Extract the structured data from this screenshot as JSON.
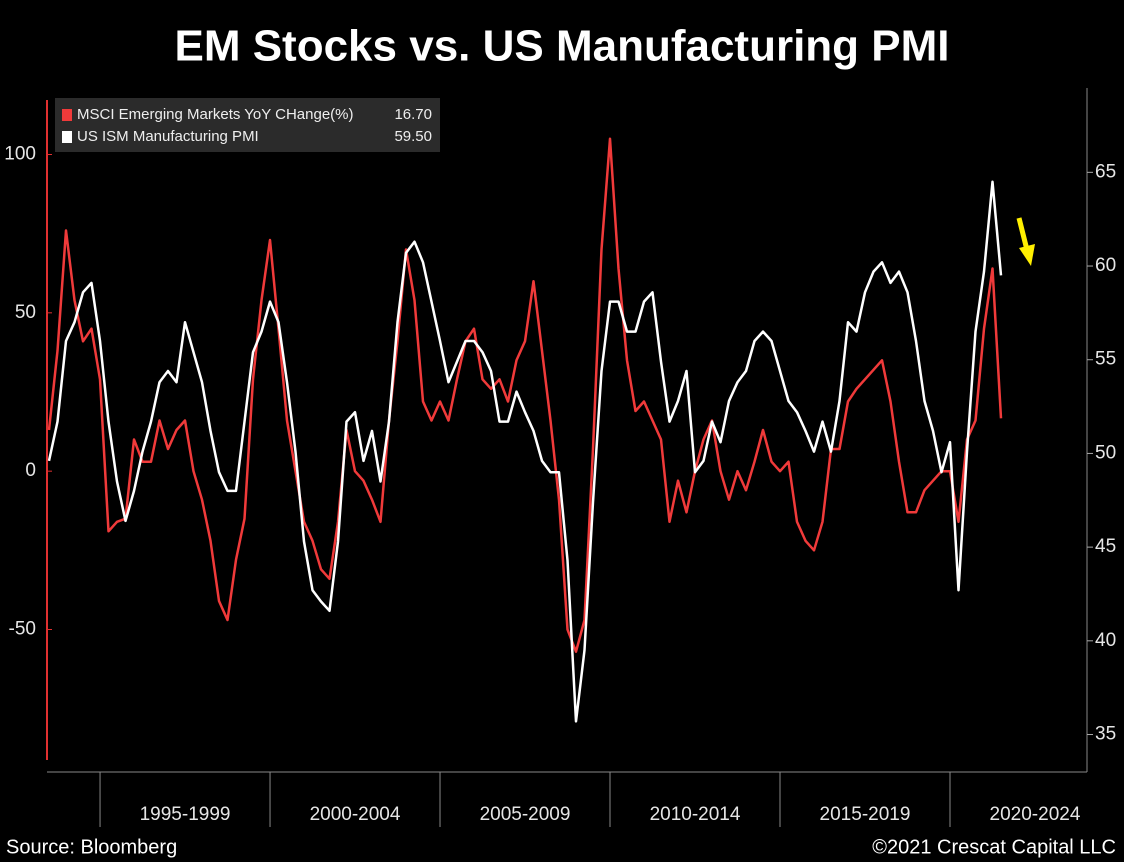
{
  "chart_data": {
    "type": "line",
    "title": "EM Stocks vs. US Manufacturing PMI",
    "source": "Source: Bloomberg",
    "copyright": "©2021 Crescat Capital LLC",
    "x": [
      1993.5,
      1993.75,
      1994,
      1994.25,
      1994.5,
      1994.75,
      1995,
      1995.25,
      1995.5,
      1995.75,
      1996,
      1996.25,
      1996.5,
      1996.75,
      1997,
      1997.25,
      1997.5,
      1997.75,
      1998,
      1998.25,
      1998.5,
      1998.75,
      1999,
      1999.25,
      1999.5,
      1999.75,
      2000,
      2000.25,
      2000.5,
      2000.75,
      2001,
      2001.25,
      2001.5,
      2001.75,
      2002,
      2002.25,
      2002.5,
      2002.75,
      2003,
      2003.25,
      2003.5,
      2003.75,
      2004,
      2004.25,
      2004.5,
      2004.75,
      2005,
      2005.25,
      2005.5,
      2005.75,
      2006,
      2006.25,
      2006.5,
      2006.75,
      2007,
      2007.25,
      2007.5,
      2007.75,
      2008,
      2008.25,
      2008.5,
      2008.75,
      2009,
      2009.25,
      2009.5,
      2009.75,
      2010,
      2010.25,
      2010.5,
      2010.75,
      2011,
      2011.25,
      2011.5,
      2011.75,
      2012,
      2012.25,
      2012.5,
      2012.75,
      2013,
      2013.25,
      2013.5,
      2013.75,
      2014,
      2014.25,
      2014.5,
      2014.75,
      2015,
      2015.25,
      2015.5,
      2015.75,
      2016,
      2016.25,
      2016.5,
      2016.75,
      2017,
      2017.25,
      2017.5,
      2017.75,
      2018,
      2018.25,
      2018.5,
      2018.75,
      2019,
      2019.25,
      2019.5,
      2019.75,
      2020,
      2020.25,
      2020.5,
      2020.75,
      2021,
      2021.25,
      2021.5
    ],
    "xlim": [
      1993.44,
      2024.03
    ],
    "xticks": [
      1995,
      2000,
      2005,
      2010,
      2015,
      2020
    ],
    "x_period_labels": [
      "1995-1999",
      "2000-2004",
      "2005-2009",
      "2010-2014",
      "2015-2019",
      "2020-2024"
    ],
    "ylim": [
      -95,
      121
    ],
    "yticks": [
      -50,
      0,
      50,
      100
    ],
    "y2lim": [
      33,
      69.5
    ],
    "y2ticks": [
      35,
      40,
      45,
      50,
      55,
      60,
      65
    ],
    "series": [
      {
        "name": "MSCI Emerging Markets YoY CHange(%)",
        "last_label": "16.70",
        "color": "#f03a3a",
        "axis": "y",
        "values": [
          13,
          38,
          76,
          54,
          41,
          45,
          29,
          -19,
          -16,
          -15,
          10,
          3,
          3,
          16,
          7,
          13,
          16,
          0,
          -9,
          -22,
          -41,
          -47,
          -28,
          -15,
          29,
          54,
          73,
          45,
          16,
          0,
          -16,
          -22,
          -31,
          -34,
          -16,
          13,
          0,
          -3,
          -9,
          -16,
          16,
          41,
          70,
          54,
          22,
          16,
          22,
          16,
          29,
          41,
          45,
          29,
          26,
          29,
          22,
          35,
          41,
          60,
          38,
          16,
          -9,
          -50,
          -57,
          -47,
          7,
          70,
          105,
          64,
          35,
          19,
          22,
          16,
          10,
          -16,
          -3,
          -13,
          0,
          10,
          16,
          0,
          -9,
          0,
          -6,
          3,
          13,
          3,
          0,
          3,
          -16,
          -22,
          -25,
          -16,
          7,
          7,
          22,
          26,
          29,
          32,
          35,
          22,
          3,
          -13,
          -13,
          -6,
          -3,
          0,
          0,
          -16,
          10,
          16,
          45,
          64,
          16.7
        ]
      },
      {
        "name": "US ISM Manufacturing PMI",
        "last_label": "59.50",
        "color": "#ffffff",
        "axis": "y2",
        "values": [
          49.6,
          51.7,
          56,
          57,
          58.6,
          59.1,
          56,
          51.7,
          48.5,
          46.4,
          48,
          50.1,
          51.7,
          53.8,
          54.4,
          53.8,
          57,
          55.4,
          53.8,
          51.2,
          49,
          48,
          48,
          51.7,
          55.4,
          56.5,
          58.1,
          57,
          53.8,
          50.1,
          45.3,
          42.7,
          42.1,
          41.6,
          45.3,
          51.7,
          52.2,
          49.6,
          51.2,
          48.5,
          51.7,
          57,
          60.7,
          61.3,
          60.2,
          58.1,
          56,
          53.8,
          54.9,
          56,
          56,
          55.4,
          54.4,
          51.7,
          51.7,
          53.3,
          52.2,
          51.2,
          49.6,
          49,
          49,
          44.3,
          35.7,
          39.5,
          47.4,
          54.4,
          58.1,
          58.1,
          56.5,
          56.5,
          58.1,
          58.6,
          54.9,
          51.7,
          52.8,
          54.4,
          49,
          49.6,
          51.7,
          50.6,
          52.8,
          53.8,
          54.4,
          56,
          56.5,
          56,
          54.4,
          52.8,
          52.2,
          51.2,
          50.1,
          51.7,
          50.1,
          52.8,
          57,
          56.5,
          58.6,
          59.7,
          60.2,
          59.1,
          59.7,
          58.6,
          56,
          52.8,
          51.2,
          49,
          50.6,
          42.7,
          50.1,
          56.5,
          59.7,
          64.5,
          59.5
        ]
      }
    ]
  }
}
